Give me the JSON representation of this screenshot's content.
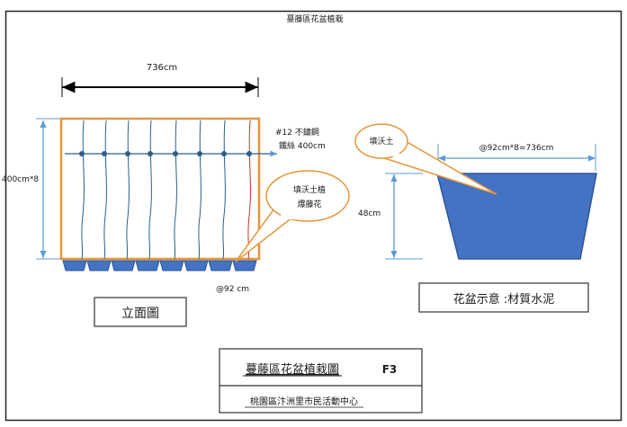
{
  "title_top": "蔓藤區花盆植栽",
  "elevation": {
    "width_label": "736cm",
    "height_label": "400cm*8",
    "wire_label_line1": "#12 不鏽鋼",
    "wire_label_line2": "鐵絲 400cm",
    "callout_plant_line1": "填沃土植",
    "callout_plant_line2": "爆藤花",
    "spacing_label": "@92 cm",
    "title_box": "立面圖"
  },
  "planter": {
    "top_width_label": "@92cm*8=736cm",
    "height_label": "48cm",
    "callout_soil": "填沃土",
    "title_box": "花盆示意 :材質水泥",
    "fill_color": "#4472c4",
    "stroke_color": "#2f5597"
  },
  "title_block": {
    "main": "蔓藤區花盆植栽圖",
    "code": "F3",
    "sub": "桃園區汴洲里市民活動中心"
  },
  "colors": {
    "frame": "#e8953a",
    "dimension_blue": "#5b9bd5",
    "wire": "#2e5f8a",
    "pot": "#4472c4"
  }
}
